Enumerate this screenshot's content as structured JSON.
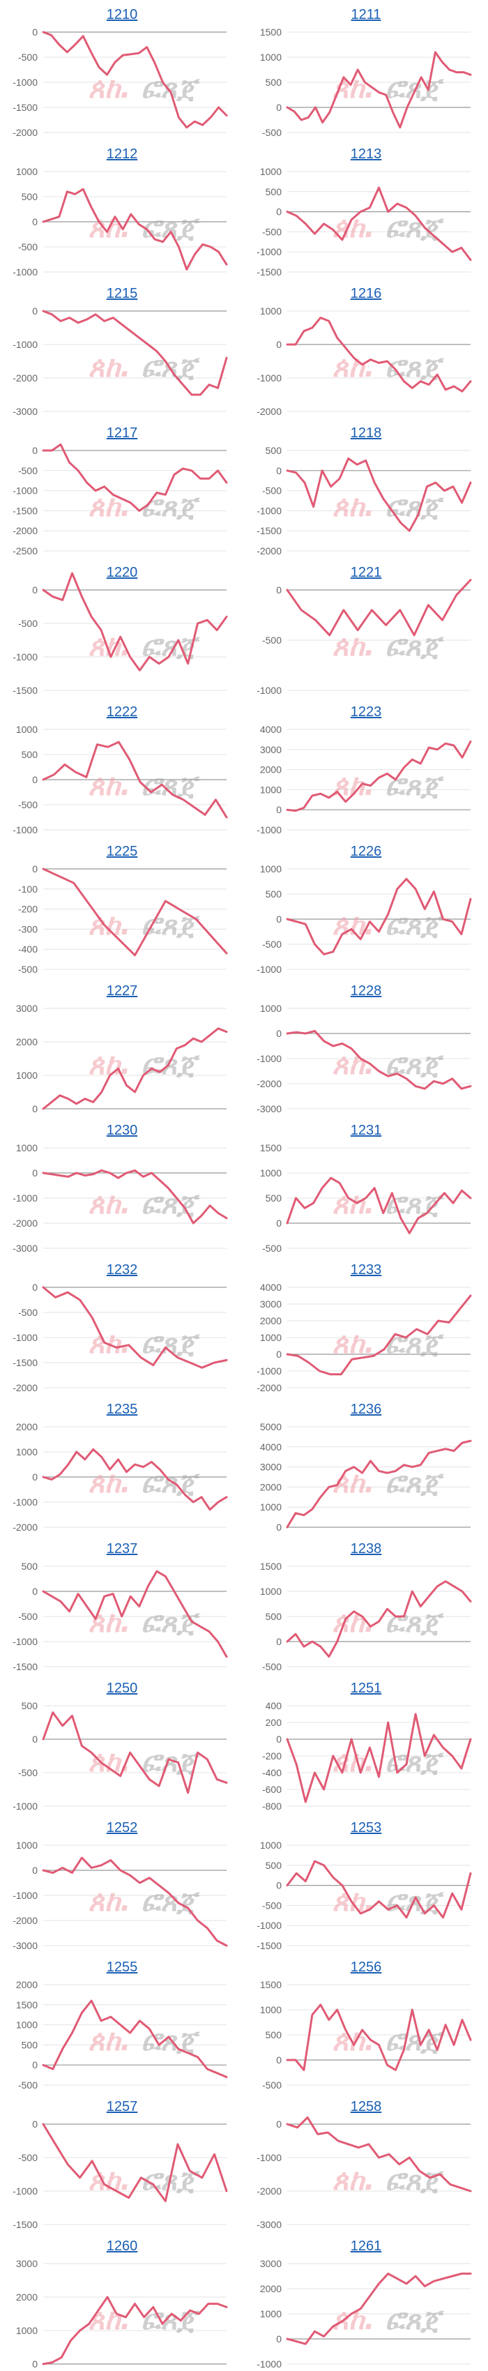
{
  "line_color": "#e05a74",
  "title_color": "#1a5fb4",
  "watermark_logo": "logo-watermark",
  "chart_data": [
    {
      "type": "line",
      "title": "1210",
      "yticks": [
        0,
        -500,
        -1000,
        -1500,
        -2000
      ],
      "ylim": [
        -2000,
        0
      ],
      "values": [
        0,
        -60,
        -250,
        -400,
        -250,
        -80,
        -400,
        -700,
        -850,
        -600,
        -460,
        -440,
        -420,
        -300,
        -620,
        -1000,
        -1200,
        -1700,
        -1900,
        -1780,
        -1850,
        -1700,
        -1500,
        -1660
      ]
    },
    {
      "type": "line",
      "title": "1211",
      "yticks": [
        1500,
        1000,
        500,
        0,
        -500
      ],
      "ylim": [
        -500,
        1500
      ],
      "values": [
        0,
        -80,
        -250,
        -200,
        0,
        -300,
        -100,
        250,
        600,
        450,
        750,
        500,
        400,
        300,
        250,
        -100,
        -400,
        0,
        300,
        600,
        350,
        1100,
        900,
        750,
        700,
        700,
        650
      ]
    },
    {
      "type": "line",
      "title": "1212",
      "yticks": [
        1000,
        500,
        0,
        -500,
        -1000
      ],
      "ylim": [
        -1000,
        1000
      ],
      "values": [
        0,
        50,
        100,
        600,
        550,
        650,
        300,
        0,
        -200,
        100,
        -150,
        150,
        -50,
        -150,
        -350,
        -400,
        -200,
        -500,
        -950,
        -650,
        -450,
        -500,
        -600,
        -850
      ]
    },
    {
      "type": "line",
      "title": "1213",
      "yticks": [
        1000,
        500,
        0,
        -500,
        -1000,
        -1500
      ],
      "ylim": [
        -1500,
        1000
      ],
      "values": [
        0,
        -100,
        -300,
        -550,
        -300,
        -450,
        -700,
        -200,
        0,
        100,
        600,
        0,
        200,
        100,
        -100,
        -400,
        -600,
        -800,
        -1000,
        -900,
        -1200
      ]
    },
    {
      "type": "line",
      "title": "1215",
      "yticks": [
        0,
        -1000,
        -2000,
        -3000
      ],
      "ylim": [
        -3000,
        0
      ],
      "values": [
        0,
        -100,
        -300,
        -200,
        -350,
        -250,
        -100,
        -300,
        -200,
        -400,
        -600,
        -800,
        -1000,
        -1200,
        -1500,
        -1900,
        -2200,
        -2500,
        -2500,
        -2200,
        -2300,
        -1400
      ]
    },
    {
      "type": "line",
      "title": "1216",
      "yticks": [
        1000,
        0,
        -1000,
        -2000
      ],
      "ylim": [
        -2000,
        1000
      ],
      "values": [
        0,
        0,
        400,
        500,
        800,
        700,
        200,
        -100,
        -400,
        -600,
        -450,
        -550,
        -500,
        -750,
        -1100,
        -1300,
        -1100,
        -1200,
        -900,
        -1350,
        -1250,
        -1400,
        -1100
      ]
    },
    {
      "type": "line",
      "title": "1217",
      "yticks": [
        0,
        -500,
        -1000,
        -1500,
        -2000,
        -2500
      ],
      "ylim": [
        -2500,
        0
      ],
      "values": [
        0,
        0,
        150,
        -300,
        -500,
        -800,
        -1000,
        -900,
        -1100,
        -1200,
        -1300,
        -1500,
        -1350,
        -1050,
        -1100,
        -600,
        -450,
        -500,
        -700,
        -700,
        -500,
        -800
      ]
    },
    {
      "type": "line",
      "title": "1218",
      "yticks": [
        500,
        0,
        -500,
        -1000,
        -1500,
        -2000
      ],
      "ylim": [
        -2000,
        500
      ],
      "values": [
        0,
        -50,
        -300,
        -900,
        0,
        -400,
        -200,
        300,
        150,
        250,
        -300,
        -700,
        -1000,
        -1300,
        -1500,
        -1100,
        -400,
        -300,
        -500,
        -400,
        -800,
        -300
      ]
    },
    {
      "type": "line",
      "title": "1220",
      "yticks": [
        0,
        -500,
        -1000,
        -1500
      ],
      "ylim": [
        -1500,
        0
      ],
      "values": [
        0,
        -100,
        -150,
        250,
        -100,
        -400,
        -600,
        -1000,
        -700,
        -1000,
        -1200,
        -1000,
        -1100,
        -1000,
        -750,
        -1100,
        -500,
        -450,
        -600,
        -400
      ]
    },
    {
      "type": "line",
      "title": "1221",
      "yticks": [
        0,
        -500,
        -1000
      ],
      "ylim": [
        -1000,
        0
      ],
      "values": [
        0,
        -200,
        -300,
        -450,
        -200,
        -400,
        -200,
        -350,
        -200,
        -450,
        -150,
        -300,
        -50,
        100
      ]
    },
    {
      "type": "line",
      "title": "1222",
      "yticks": [
        1000,
        500,
        0,
        -500,
        -1000
      ],
      "ylim": [
        -1000,
        1000
      ],
      "values": [
        0,
        100,
        300,
        150,
        50,
        700,
        650,
        750,
        400,
        -50,
        -250,
        -100,
        -300,
        -400,
        -550,
        -700,
        -400,
        -750
      ]
    },
    {
      "type": "line",
      "title": "1223",
      "yticks": [
        4000,
        3000,
        2000,
        1000,
        0,
        -1000
      ],
      "ylim": [
        -1000,
        4000
      ],
      "values": [
        0,
        -50,
        100,
        700,
        800,
        600,
        900,
        400,
        800,
        1300,
        1200,
        1600,
        1800,
        1500,
        2100,
        2500,
        2300,
        3100,
        3000,
        3300,
        3200,
        2600,
        3400
      ]
    },
    {
      "type": "line",
      "title": "1225",
      "yticks": [
        0,
        -100,
        -200,
        -300,
        -400,
        -500
      ],
      "ylim": [
        -500,
        0
      ],
      "values": [
        0,
        -70,
        -280,
        -430,
        -160,
        -250,
        -420
      ]
    },
    {
      "type": "line",
      "title": "1226",
      "yticks": [
        1000,
        500,
        0,
        -500,
        -1000
      ],
      "ylim": [
        -1000,
        1000
      ],
      "values": [
        0,
        -50,
        -100,
        -500,
        -700,
        -650,
        -300,
        -200,
        -400,
        -50,
        -250,
        100,
        600,
        800,
        600,
        200,
        550,
        0,
        -50,
        -300,
        400
      ]
    },
    {
      "type": "line",
      "title": "1227",
      "yticks": [
        3000,
        2000,
        1000,
        0
      ],
      "ylim": [
        0,
        3000
      ],
      "values": [
        0,
        200,
        400,
        300,
        150,
        300,
        200,
        500,
        1000,
        1200,
        700,
        500,
        1000,
        1200,
        1100,
        1300,
        1800,
        1900,
        2100,
        2000,
        2200,
        2400,
        2300
      ]
    },
    {
      "type": "line",
      "title": "1228",
      "yticks": [
        1000,
        0,
        -1000,
        -2000,
        -3000
      ],
      "ylim": [
        -3000,
        1000
      ],
      "values": [
        0,
        50,
        0,
        100,
        -300,
        -500,
        -400,
        -600,
        -1000,
        -1200,
        -1500,
        -1700,
        -1600,
        -1800,
        -2100,
        -2200,
        -1900,
        -2000,
        -1800,
        -2200,
        -2100
      ]
    },
    {
      "type": "line",
      "title": "1230",
      "yticks": [
        1000,
        0,
        -1000,
        -2000,
        -3000
      ],
      "ylim": [
        -3000,
        1000
      ],
      "values": [
        0,
        -50,
        -100,
        -150,
        0,
        -100,
        -50,
        100,
        0,
        -200,
        0,
        100,
        -150,
        0,
        -300,
        -600,
        -1000,
        -1400,
        -2000,
        -1700,
        -1300,
        -1600,
        -1800
      ]
    },
    {
      "type": "line",
      "title": "1231",
      "yticks": [
        1500,
        1000,
        500,
        0,
        -500
      ],
      "ylim": [
        -500,
        1500
      ],
      "values": [
        0,
        500,
        300,
        400,
        700,
        900,
        800,
        500,
        400,
        500,
        700,
        200,
        600,
        100,
        -200,
        100,
        200,
        400,
        600,
        400,
        650,
        500
      ]
    },
    {
      "type": "line",
      "title": "1232",
      "yticks": [
        0,
        -500,
        -1000,
        -1500,
        -2000
      ],
      "ylim": [
        -2000,
        0
      ],
      "values": [
        0,
        -200,
        -100,
        -250,
        -600,
        -1100,
        -1200,
        -1150,
        -1400,
        -1550,
        -1200,
        -1400,
        -1500,
        -1600,
        -1500,
        -1450
      ]
    },
    {
      "type": "line",
      "title": "1233",
      "yticks": [
        4000,
        3000,
        2000,
        1000,
        0,
        -1000,
        -2000
      ],
      "ylim": [
        -2000,
        4000
      ],
      "values": [
        0,
        -100,
        -500,
        -1000,
        -1200,
        -1200,
        -300,
        -200,
        -100,
        300,
        1200,
        1000,
        1500,
        1200,
        2000,
        1900,
        2700,
        3500
      ]
    },
    {
      "type": "line",
      "title": "1235",
      "yticks": [
        2000,
        1000,
        0,
        -1000,
        -2000
      ],
      "ylim": [
        -2000,
        2000
      ],
      "values": [
        0,
        -100,
        100,
        500,
        1000,
        700,
        1100,
        800,
        300,
        700,
        200,
        500,
        400,
        600,
        300,
        -100,
        -300,
        -700,
        -1000,
        -800,
        -1300,
        -1000,
        -800
      ]
    },
    {
      "type": "line",
      "title": "1236",
      "yticks": [
        5000,
        4000,
        3000,
        2000,
        1000,
        0
      ],
      "ylim": [
        0,
        5000
      ],
      "values": [
        0,
        700,
        600,
        900,
        1500,
        2000,
        2100,
        2800,
        3000,
        2700,
        3300,
        2800,
        2700,
        2800,
        3100,
        3000,
        3100,
        3700,
        3800,
        3900,
        3800,
        4200,
        4300
      ]
    },
    {
      "type": "line",
      "title": "1237",
      "yticks": [
        500,
        0,
        -500,
        -1000,
        -1500
      ],
      "ylim": [
        -1500,
        500
      ],
      "values": [
        0,
        -100,
        -200,
        -400,
        -50,
        -300,
        -550,
        -100,
        -50,
        -500,
        -100,
        -300,
        100,
        400,
        300,
        0,
        -300,
        -600,
        -700,
        -800,
        -1000,
        -1300
      ]
    },
    {
      "type": "line",
      "title": "1238",
      "yticks": [
        1500,
        1000,
        500,
        0,
        -500
      ],
      "ylim": [
        -500,
        1500
      ],
      "values": [
        0,
        150,
        -100,
        0,
        -100,
        -300,
        0,
        450,
        600,
        500,
        300,
        400,
        650,
        500,
        500,
        1000,
        700,
        900,
        1100,
        1200,
        1100,
        1000,
        800
      ]
    },
    {
      "type": "line",
      "title": "1250",
      "yticks": [
        500,
        0,
        -500,
        -1000
      ],
      "ylim": [
        -1000,
        500
      ],
      "values": [
        0,
        400,
        200,
        350,
        -100,
        -200,
        -350,
        -450,
        -550,
        -200,
        -400,
        -600,
        -700,
        -300,
        -350,
        -800,
        -200,
        -300,
        -600,
        -650
      ]
    },
    {
      "type": "line",
      "title": "1251",
      "yticks": [
        400,
        200,
        0,
        -200,
        -400,
        -600,
        -800
      ],
      "ylim": [
        -800,
        400
      ],
      "values": [
        0,
        -300,
        -750,
        -400,
        -600,
        -200,
        -400,
        0,
        -400,
        -100,
        -450,
        200,
        -400,
        -300,
        300,
        -200,
        50,
        -100,
        -200,
        -350,
        0
      ]
    },
    {
      "type": "line",
      "title": "1252",
      "yticks": [
        1000,
        0,
        -1000,
        -2000,
        -3000
      ],
      "ylim": [
        -3000,
        1000
      ],
      "values": [
        0,
        -100,
        100,
        -100,
        500,
        100,
        200,
        400,
        0,
        -200,
        -500,
        -300,
        -600,
        -900,
        -1300,
        -1500,
        -2000,
        -2300,
        -2800,
        -3000
      ]
    },
    {
      "type": "line",
      "title": "1253",
      "yticks": [
        1000,
        500,
        0,
        -500,
        -1000,
        -1500
      ],
      "ylim": [
        -1500,
        1000
      ],
      "values": [
        0,
        300,
        100,
        600,
        500,
        200,
        0,
        -400,
        -700,
        -600,
        -400,
        -600,
        -500,
        -800,
        -300,
        -700,
        -500,
        -800,
        -200,
        -600,
        300
      ]
    },
    {
      "type": "line",
      "title": "1255",
      "yticks": [
        2000,
        1500,
        1000,
        500,
        0,
        -500
      ],
      "ylim": [
        -500,
        2000
      ],
      "values": [
        0,
        -100,
        400,
        800,
        1300,
        1600,
        1100,
        1200,
        1000,
        800,
        1100,
        900,
        500,
        700,
        400,
        300,
        200,
        -100,
        -200,
        -300
      ]
    },
    {
      "type": "line",
      "title": "1256",
      "yticks": [
        1500,
        1000,
        500,
        0,
        -500
      ],
      "ylim": [
        -500,
        1500
      ],
      "values": [
        0,
        0,
        -200,
        900,
        1100,
        800,
        1000,
        600,
        300,
        600,
        400,
        300,
        -100,
        -200,
        200,
        1000,
        300,
        600,
        200,
        700,
        300,
        800,
        400
      ]
    },
    {
      "type": "line",
      "title": "1257",
      "yticks": [
        0,
        -500,
        -1000,
        -1500
      ],
      "ylim": [
        -1500,
        0
      ],
      "values": [
        0,
        -300,
        -600,
        -800,
        -550,
        -900,
        -1000,
        -1100,
        -800,
        -900,
        -1150,
        -300,
        -700,
        -800,
        -450,
        -1000
      ]
    },
    {
      "type": "line",
      "title": "1258",
      "yticks": [
        0,
        -1000,
        -2000,
        -3000
      ],
      "ylim": [
        -3000,
        0
      ],
      "values": [
        0,
        -100,
        200,
        -300,
        -250,
        -500,
        -600,
        -700,
        -600,
        -1000,
        -900,
        -1200,
        -1000,
        -1400,
        -1600,
        -1500,
        -1800,
        -1900,
        -2000
      ]
    },
    {
      "type": "line",
      "title": "1260",
      "yticks": [
        3000,
        2000,
        1000,
        0
      ],
      "ylim": [
        0,
        3000
      ],
      "values": [
        0,
        50,
        200,
        700,
        1000,
        1200,
        1600,
        2000,
        1500,
        1400,
        1800,
        1400,
        1700,
        1200,
        1500,
        1300,
        1600,
        1500,
        1800,
        1800,
        1700
      ]
    },
    {
      "type": "line",
      "title": "1261",
      "yticks": [
        3000,
        2000,
        1000,
        0,
        -1000
      ],
      "ylim": [
        -1000,
        3000
      ],
      "values": [
        0,
        -100,
        -200,
        300,
        100,
        500,
        700,
        1000,
        1200,
        1700,
        2200,
        2600,
        2400,
        2200,
        2500,
        2100,
        2300,
        2400,
        2500,
        2600,
        2600
      ]
    }
  ]
}
